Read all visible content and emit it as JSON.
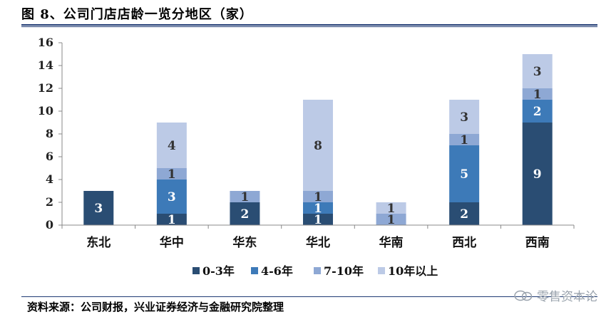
{
  "figure": {
    "title": "图 8、公司门店店龄一览分地区（家）",
    "source": "资料来源：公司财报，兴业证券经济与金融研究院整理",
    "watermark": "零售资本论"
  },
  "chart_data": {
    "type": "bar",
    "stacked": true,
    "categories": [
      "东北",
      "华中",
      "华东",
      "华北",
      "华南",
      "西北",
      "西南"
    ],
    "series": [
      {
        "name": "0-3年",
        "color": "#2a4d73",
        "values": [
          3,
          1,
          2,
          1,
          0,
          2,
          9
        ]
      },
      {
        "name": "4-6年",
        "color": "#3d7ab8",
        "values": [
          0,
          3,
          0,
          1,
          0,
          5,
          2
        ]
      },
      {
        "name": "7-10年",
        "color": "#8ea8d4",
        "values": [
          0,
          1,
          1,
          1,
          1,
          1,
          1
        ]
      },
      {
        "name": "10年以上",
        "color": "#bccae6",
        "values": [
          0,
          4,
          0,
          8,
          1,
          3,
          3
        ]
      }
    ],
    "ylim": [
      0,
      16
    ],
    "yticks": [
      "0",
      "2",
      "4",
      "6",
      "8",
      "10",
      "12",
      "14",
      "16"
    ],
    "legend_position": "bottom",
    "grid": false
  }
}
